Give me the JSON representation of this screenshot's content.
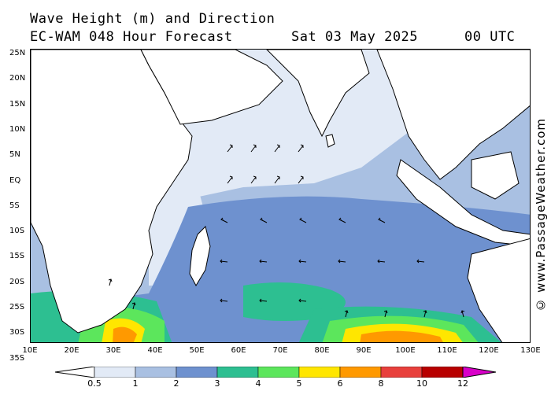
{
  "title": {
    "line1": "Wave Height (m) and Direction",
    "line2": "EC-WAM 048 Hour Forecast",
    "date": "Sat 03 May 2025",
    "time": "00 UTC"
  },
  "credit": "© www.PassageWeather.com",
  "lat_labels": [
    "25N",
    "20N",
    "15N",
    "10N",
    "5N",
    "EQ",
    "5S",
    "10S",
    "15S",
    "20S",
    "25S",
    "30S",
    "35S"
  ],
  "lon_labels": [
    "10E",
    "20E",
    "30E",
    "40E",
    "50E",
    "60E",
    "70E",
    "80E",
    "90E",
    "100E",
    "110E",
    "120E",
    "130E"
  ],
  "colorbar": {
    "labels": [
      "0.5",
      "1",
      "2",
      "3",
      "4",
      "5",
      "6",
      "8",
      "10",
      "12"
    ],
    "colors": [
      "#e2eaf6",
      "#a9c0e2",
      "#6e91cf",
      "#2dbf91",
      "#5ce65c",
      "#ffe600",
      "#ff9900",
      "#e8403c",
      "#b80000",
      "#d800c8"
    ]
  },
  "map_colors": {
    "land": "#ffffff",
    "sea_low": "#e2eaf6",
    "sea_1_2": "#a9c0e2",
    "sea_2_3": "#6e91cf",
    "sea_3_4": "#2dbf91",
    "sea_4_5": "#5ce65c",
    "sea_5_6": "#ffe600",
    "sea_6_8": "#ff9900",
    "coast": "#000000",
    "border": "#888888"
  }
}
